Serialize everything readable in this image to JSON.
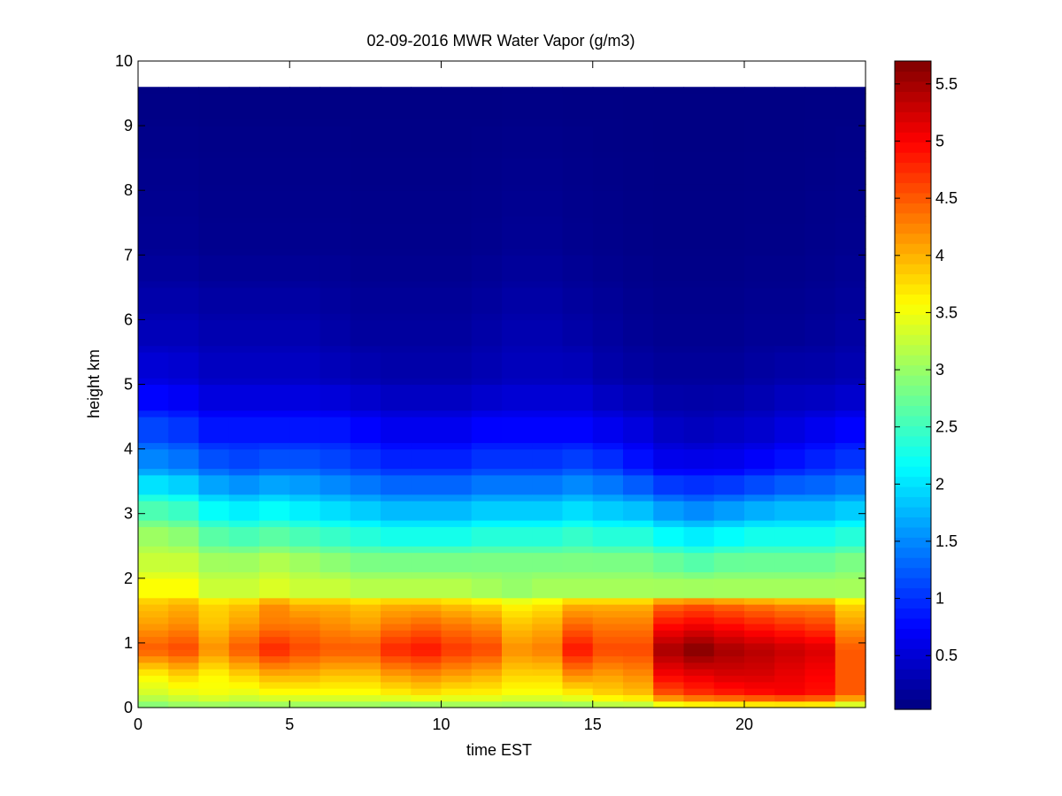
{
  "chart_data": {
    "type": "heatmap",
    "title": "02-09-2016 MWR Water Vapor (g/m3)",
    "xlabel": "time EST",
    "ylabel": "height km",
    "xlim": [
      0,
      24
    ],
    "ylim": [
      0,
      10
    ],
    "xticks": [
      0,
      5,
      10,
      15,
      20
    ],
    "yticks": [
      0,
      1,
      2,
      3,
      4,
      5,
      6,
      7,
      8,
      9,
      10
    ],
    "colorbar": {
      "range": [
        0.03,
        5.7
      ],
      "ticks": [
        0.5,
        1,
        1.5,
        2,
        2.5,
        3,
        3.5,
        4,
        4.5,
        5,
        5.5
      ],
      "colormap": "jet"
    },
    "time_hours": [
      0.5,
      1.5,
      2.5,
      3.5,
      4.5,
      5.5,
      6.5,
      7.5,
      8.5,
      9.5,
      10.5,
      11.5,
      12.5,
      13.5,
      14.5,
      15.5,
      16.5,
      17.5,
      18.5,
      19.5,
      20.5,
      21.5,
      22.5,
      23.5
    ],
    "height_km": [
      0.05,
      0.15,
      0.25,
      0.35,
      0.45,
      0.55,
      0.65,
      0.75,
      0.85,
      0.95,
      1.05,
      1.15,
      1.25,
      1.35,
      1.45,
      1.55,
      1.65,
      1.85,
      2.05,
      2.25,
      2.45,
      2.65,
      2.85,
      3.05,
      3.25,
      3.45,
      3.65,
      3.85,
      4.05,
      4.3,
      4.55,
      4.8,
      5.05,
      5.3,
      5.55,
      5.8,
      6.05,
      6.3,
      6.55,
      6.8,
      7.05,
      7.3,
      7.55,
      7.8,
      8.05,
      8.3,
      8.55,
      8.8,
      9.05,
      9.3,
      9.55
    ],
    "anchor_heights_km": [
      0,
      0.2,
      0.5,
      0.9,
      1.3,
      1.6,
      1.8,
      2.2,
      2.7,
      3.2,
      3.7,
      4.2,
      5.0,
      5.8,
      7.0,
      9.8
    ],
    "profiles": [
      [
        2.8,
        3.3,
        3.6,
        4.5,
        4.1,
        3.9,
        3.6,
        3.3,
        3.0,
        2.4,
        1.6,
        1.2,
        0.6,
        0.35,
        0.15,
        0.05
      ],
      [
        2.9,
        3.4,
        3.8,
        4.6,
        4.2,
        4.0,
        3.6,
        3.3,
        2.9,
        2.3,
        1.5,
        1.1,
        0.55,
        0.35,
        0.15,
        0.05
      ],
      [
        2.9,
        3.5,
        3.6,
        4.2,
        3.9,
        3.8,
        3.3,
        3.1,
        2.6,
        2.0,
        1.3,
        0.9,
        0.45,
        0.3,
        0.12,
        0.05
      ],
      [
        2.9,
        3.4,
        3.8,
        4.5,
        4.1,
        3.9,
        3.3,
        3.1,
        2.5,
        1.9,
        1.2,
        0.9,
        0.45,
        0.3,
        0.12,
        0.05
      ],
      [
        2.9,
        3.5,
        4.0,
        4.8,
        4.3,
        4.2,
        3.4,
        3.2,
        2.6,
        2.0,
        1.3,
        0.9,
        0.45,
        0.3,
        0.12,
        0.05
      ],
      [
        2.9,
        3.5,
        4.0,
        4.6,
        4.3,
        4.0,
        3.3,
        3.1,
        2.5,
        1.9,
        1.3,
        0.9,
        0.45,
        0.3,
        0.12,
        0.05
      ],
      [
        2.9,
        3.5,
        3.9,
        4.5,
        4.2,
        4.0,
        3.3,
        3.0,
        2.4,
        1.8,
        1.2,
        0.9,
        0.4,
        0.25,
        0.12,
        0.05
      ],
      [
        2.9,
        3.5,
        3.9,
        4.5,
        4.1,
        3.9,
        3.2,
        2.9,
        2.3,
        1.7,
        1.1,
        0.8,
        0.35,
        0.2,
        0.1,
        0.05
      ],
      [
        2.8,
        3.6,
        4.1,
        4.8,
        4.3,
        4.0,
        3.2,
        2.9,
        2.2,
        1.6,
        1.0,
        0.7,
        0.3,
        0.2,
        0.1,
        0.05
      ],
      [
        2.8,
        3.7,
        4.2,
        4.9,
        4.4,
        4.0,
        3.2,
        2.9,
        2.2,
        1.6,
        1.0,
        0.7,
        0.3,
        0.2,
        0.1,
        0.05
      ],
      [
        2.9,
        3.6,
        4.1,
        4.7,
        4.3,
        3.9,
        3.2,
        2.9,
        2.2,
        1.6,
        1.0,
        0.7,
        0.3,
        0.2,
        0.1,
        0.05
      ],
      [
        2.9,
        3.6,
        4.0,
        4.6,
        4.2,
        3.8,
        3.1,
        2.9,
        2.3,
        1.7,
        1.1,
        0.8,
        0.35,
        0.25,
        0.12,
        0.05
      ],
      [
        2.9,
        3.5,
        3.8,
        4.2,
        3.9,
        3.6,
        3.0,
        2.9,
        2.3,
        1.7,
        1.1,
        0.8,
        0.4,
        0.3,
        0.15,
        0.05
      ],
      [
        2.9,
        3.5,
        3.8,
        4.3,
        4.0,
        3.7,
        3.1,
        2.9,
        2.3,
        1.7,
        1.1,
        0.8,
        0.4,
        0.3,
        0.15,
        0.05
      ],
      [
        2.9,
        3.6,
        4.2,
        4.9,
        4.4,
        4.0,
        3.1,
        2.9,
        2.4,
        1.8,
        1.2,
        0.8,
        0.4,
        0.25,
        0.12,
        0.05
      ],
      [
        3.0,
        3.8,
        4.1,
        4.6,
        4.3,
        4.0,
        3.1,
        2.9,
        2.3,
        1.7,
        1.1,
        0.7,
        0.3,
        0.2,
        0.1,
        0.05
      ],
      [
        3.0,
        3.9,
        4.2,
        4.6,
        4.3,
        4.0,
        3.1,
        2.9,
        2.3,
        1.6,
        0.9,
        0.6,
        0.25,
        0.15,
        0.08,
        0.05
      ],
      [
        3.2,
        4.5,
        5.0,
        5.5,
        4.9,
        4.4,
        3.1,
        2.8,
        2.1,
        1.4,
        0.7,
        0.45,
        0.2,
        0.12,
        0.07,
        0.05
      ],
      [
        3.3,
        4.7,
        5.1,
        5.7,
        5.0,
        4.5,
        3.1,
        2.7,
        2.0,
        1.3,
        0.7,
        0.4,
        0.2,
        0.12,
        0.07,
        0.05
      ],
      [
        3.3,
        4.8,
        5.2,
        5.5,
        4.9,
        4.4,
        3.1,
        2.8,
        2.1,
        1.4,
        0.7,
        0.45,
        0.2,
        0.12,
        0.07,
        0.05
      ],
      [
        3.3,
        4.9,
        5.2,
        5.4,
        4.8,
        4.3,
        3.1,
        2.8,
        2.2,
        1.5,
        0.8,
        0.5,
        0.25,
        0.15,
        0.08,
        0.05
      ],
      [
        3.3,
        5.0,
        5.1,
        5.3,
        4.7,
        4.2,
        3.1,
        2.8,
        2.2,
        1.6,
        0.9,
        0.6,
        0.3,
        0.15,
        0.08,
        0.05
      ],
      [
        3.3,
        4.9,
        5.0,
        5.2,
        4.6,
        4.2,
        3.1,
        2.8,
        2.2,
        1.6,
        1.0,
        0.7,
        0.3,
        0.18,
        0.1,
        0.05
      ],
      [
        3.0,
        4.5,
        4.5,
        4.5,
        4.1,
        3.8,
        3.1,
        2.9,
        2.3,
        1.7,
        1.1,
        0.8,
        0.35,
        0.22,
        0.12,
        0.05
      ]
    ]
  }
}
